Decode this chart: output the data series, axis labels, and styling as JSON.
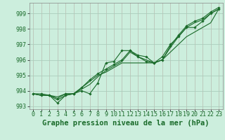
{
  "title": "Graphe pression niveau de la mer (hPa)",
  "hours": [
    0,
    1,
    2,
    3,
    4,
    5,
    6,
    7,
    8,
    9,
    10,
    11,
    12,
    13,
    14,
    15,
    16,
    17,
    18,
    19,
    20,
    21,
    22,
    23
  ],
  "ylim": [
    992.8,
    999.7
  ],
  "yticks": [
    993,
    994,
    995,
    996,
    997,
    998,
    999
  ],
  "bg_color": "#cceedd",
  "grid_color": "#aaccbb",
  "line_color": "#1a6b2a",
  "series": [
    [
      993.8,
      993.8,
      993.7,
      993.2,
      993.7,
      993.8,
      994.0,
      993.8,
      994.5,
      995.8,
      995.9,
      996.6,
      996.6,
      996.2,
      995.9,
      995.8,
      996.2,
      997.0,
      997.5,
      998.1,
      998.1,
      998.5,
      999.0,
      999.3
    ],
    [
      993.8,
      993.7,
      993.7,
      993.6,
      993.8,
      993.8,
      994.2,
      994.6,
      995.0,
      995.2,
      995.5,
      995.8,
      995.8,
      995.8,
      995.8,
      995.8,
      996.0,
      996.5,
      997.0,
      997.5,
      997.8,
      998.1,
      998.4,
      999.3
    ],
    [
      993.8,
      993.7,
      993.7,
      993.5,
      993.8,
      993.8,
      994.2,
      994.7,
      995.1,
      995.4,
      995.7,
      996.0,
      996.6,
      996.3,
      996.2,
      995.8,
      996.0,
      996.9,
      997.6,
      998.2,
      998.5,
      998.7,
      999.1,
      999.4
    ],
    [
      993.8,
      993.7,
      993.7,
      993.4,
      993.7,
      993.8,
      994.1,
      994.4,
      994.9,
      995.3,
      995.6,
      995.9,
      996.5,
      996.2,
      996.0,
      995.8,
      996.0,
      996.8,
      997.5,
      998.1,
      998.4,
      998.6,
      999.0,
      999.3
    ]
  ],
  "marker_series": [
    0,
    2
  ],
  "title_fontsize": 7.5,
  "tick_fontsize": 6.0
}
